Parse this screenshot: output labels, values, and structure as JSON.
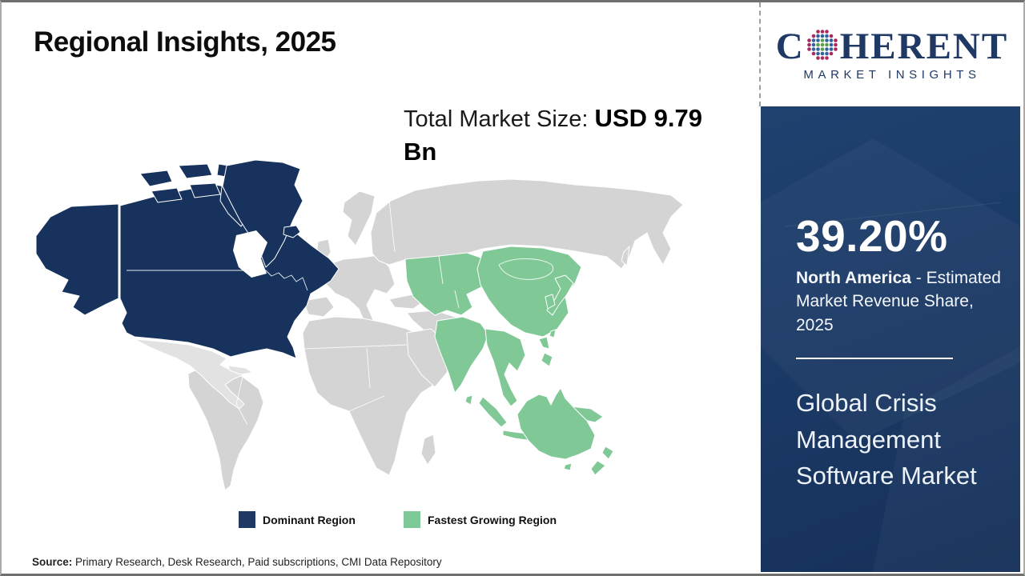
{
  "slide": {
    "title": "Regional Insights, 2025",
    "market_size_label": "Total Market Size: ",
    "market_size_value": "USD 9.79 Bn",
    "source_label": "Source:",
    "source_text": " Primary Research, Desk Research, Paid subscriptions, CMI Data Repository"
  },
  "legend": [
    {
      "label": "Dominant Region",
      "color": "#1f3864"
    },
    {
      "label": "Fastest Growing Region",
      "color": "#7ec998"
    }
  ],
  "map": {
    "colors": {
      "north_america": "#17335d",
      "asia_pacific": "#80c997",
      "rest_of_world": "#d4d4d4",
      "latin_america": "#e2e2e2"
    },
    "regions": [
      {
        "name": "North America",
        "classification": "Dominant Region"
      },
      {
        "name": "Asia Pacific",
        "classification": "Fastest Growing Region"
      },
      {
        "name": "Rest of World",
        "classification": "Other"
      }
    ]
  },
  "sidebar": {
    "logo": {
      "brand_c": "C",
      "brand_rest": "HERENT",
      "subtitle": "MARKET INSIGHTS",
      "navy": "#1f3864",
      "dots": {
        "green": "#5f9e49",
        "blue": "#31639f",
        "crimson": "#a62a5d"
      }
    },
    "share_value": "39.20%",
    "share_region": "North America",
    "share_desc": " - Estimated Market Revenue Share, 2025",
    "market_name": "Global Crisis Management Software Market"
  },
  "chart_data": {
    "type": "choropleth_map",
    "title": "Regional Insights, 2025",
    "total_market_size": "USD 9.79 Bn",
    "regions": [
      {
        "name": "North America",
        "status": "Dominant Region",
        "estimated_market_revenue_share_2025_pct": 39.2
      },
      {
        "name": "Asia Pacific",
        "status": "Fastest Growing Region"
      }
    ],
    "legend": [
      "Dominant Region",
      "Fastest Growing Region"
    ],
    "source": "Primary Research, Desk Research, Paid subscriptions, CMI Data Repository"
  }
}
